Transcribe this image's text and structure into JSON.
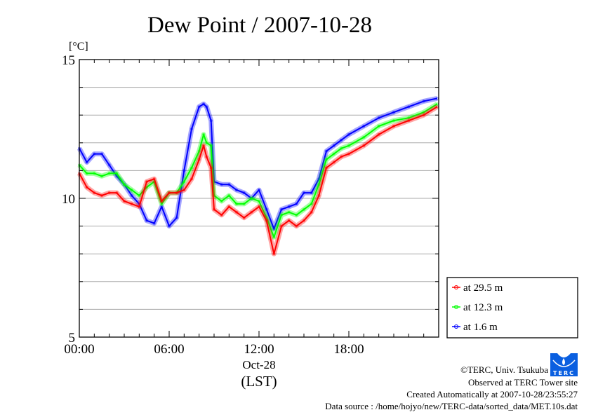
{
  "chart_data": {
    "type": "line",
    "title": "Dew Point / 2007-10-28",
    "ylabel": "[°C]",
    "xlabel": "(LST)",
    "x_date_label": "Oct-28",
    "xlim": [
      0,
      24
    ],
    "ylim": [
      5,
      15
    ],
    "x_ticks": [
      0,
      6,
      12,
      18
    ],
    "x_tick_labels": [
      "00:00",
      "06:00",
      "12:00",
      "18:00"
    ],
    "y_ticks": [
      5,
      10,
      15
    ],
    "y_tick_labels": [
      "5",
      "10",
      "15"
    ],
    "grid": true,
    "legend_position": "right-bottom, outside plot",
    "x_unit": "hours",
    "x": [
      0,
      0.5,
      1,
      1.5,
      2,
      2.5,
      3,
      3.5,
      4,
      4.5,
      5,
      5.5,
      6,
      6.5,
      7,
      7.5,
      8,
      8.3,
      8.5,
      8.8,
      9,
      9.5,
      10,
      10.5,
      11,
      11.5,
      12,
      12.5,
      13,
      13.5,
      14,
      14.5,
      15,
      15.5,
      16,
      16.5,
      17,
      17.5,
      18,
      19,
      20,
      21,
      22,
      23,
      23.9
    ],
    "series": [
      {
        "name": "at 29.5 m",
        "color": "#ff0000",
        "values": [
          10.9,
          10.4,
          10.2,
          10.1,
          10.2,
          10.2,
          9.9,
          9.8,
          9.7,
          10.6,
          10.7,
          9.9,
          10.2,
          10.2,
          10.3,
          10.7,
          11.4,
          11.9,
          11.5,
          11.1,
          9.6,
          9.4,
          9.7,
          9.5,
          9.3,
          9.5,
          9.7,
          9.2,
          8.0,
          9.0,
          9.2,
          9.0,
          9.2,
          9.5,
          10.1,
          11.1,
          11.3,
          11.5,
          11.6,
          11.9,
          12.3,
          12.6,
          12.8,
          13.0,
          13.3
        ]
      },
      {
        "name": "at 12.3 m",
        "color": "#00ff00",
        "values": [
          11.2,
          10.9,
          10.9,
          10.8,
          10.9,
          10.9,
          10.5,
          10.3,
          10.1,
          10.4,
          10.6,
          9.8,
          10.2,
          10.2,
          10.6,
          11.1,
          11.7,
          12.3,
          12.0,
          11.9,
          10.1,
          9.9,
          10.1,
          9.8,
          9.8,
          10.0,
          9.9,
          9.3,
          8.6,
          9.4,
          9.5,
          9.4,
          9.6,
          9.8,
          10.5,
          11.4,
          11.6,
          11.8,
          11.9,
          12.2,
          12.6,
          12.8,
          12.9,
          13.1,
          13.4
        ]
      },
      {
        "name": "at 1.6 m",
        "color": "#0000ff",
        "values": [
          11.8,
          11.3,
          11.6,
          11.6,
          11.2,
          10.8,
          10.5,
          10.1,
          9.8,
          9.2,
          9.1,
          9.7,
          9.0,
          9.3,
          11.0,
          12.5,
          13.3,
          13.4,
          13.3,
          12.8,
          10.6,
          10.5,
          10.5,
          10.3,
          10.2,
          10.0,
          10.3,
          9.6,
          8.9,
          9.6,
          9.7,
          9.8,
          10.2,
          10.2,
          10.7,
          11.7,
          11.9,
          12.1,
          12.3,
          12.6,
          12.9,
          13.1,
          13.3,
          13.5,
          13.6
        ]
      }
    ]
  },
  "footer": {
    "copyright": "©TERC, Univ. Tsukuba",
    "observed": "Observed at TERC Tower site",
    "created": "Created Automatically at 2007-10-28/23:55:27",
    "source": "Data source : /home/hojyo/new/TERC-data/sorted_data/MET.10s.dat",
    "logo_text": "TERC"
  }
}
